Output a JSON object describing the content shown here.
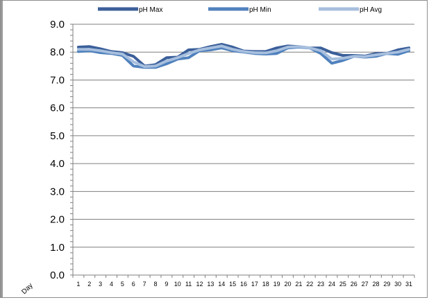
{
  "chart_data": {
    "type": "line",
    "xlabel": "Day",
    "ylabel": "",
    "ylim": [
      0,
      9
    ],
    "yticks": [
      "0.0",
      "1.0",
      "2.0",
      "3.0",
      "4.0",
      "5.0",
      "6.0",
      "7.0",
      "8.0",
      "9.0"
    ],
    "x": [
      1,
      2,
      3,
      4,
      5,
      6,
      7,
      8,
      9,
      10,
      11,
      12,
      13,
      14,
      15,
      16,
      17,
      18,
      19,
      20,
      21,
      22,
      23,
      24,
      25,
      26,
      27,
      28,
      29,
      30,
      31
    ],
    "grid": true,
    "legend_position": "top",
    "series": [
      {
        "name": "pH Max",
        "color": "#3b5f9a",
        "values": [
          8.18,
          8.2,
          8.12,
          8.02,
          7.98,
          7.85,
          7.5,
          7.55,
          7.8,
          7.82,
          8.08,
          8.1,
          8.2,
          8.28,
          8.18,
          8.04,
          8.02,
          8.02,
          8.15,
          8.22,
          8.2,
          8.15,
          8.15,
          7.98,
          7.88,
          7.88,
          7.86,
          7.95,
          7.95,
          8.08,
          8.15
        ]
      },
      {
        "name": "pH Min",
        "color": "#4f81bd",
        "values": [
          8.02,
          8.05,
          7.98,
          7.95,
          7.88,
          7.5,
          7.45,
          7.45,
          7.58,
          7.75,
          7.8,
          8.05,
          8.08,
          8.15,
          8.05,
          8.0,
          7.95,
          7.93,
          7.95,
          8.15,
          8.18,
          8.15,
          7.95,
          7.6,
          7.7,
          7.85,
          7.82,
          7.85,
          7.95,
          7.92,
          8.05
        ]
      },
      {
        "name": "pH Avg",
        "color": "#a7bfde",
        "values": [
          8.1,
          8.1,
          8.05,
          7.98,
          7.93,
          7.65,
          7.48,
          7.5,
          7.68,
          7.8,
          7.95,
          8.08,
          8.15,
          8.22,
          8.1,
          8.02,
          7.98,
          7.97,
          8.05,
          8.18,
          8.2,
          8.15,
          8.05,
          7.75,
          7.78,
          7.85,
          7.84,
          7.9,
          7.95,
          8.0,
          8.1
        ]
      }
    ]
  }
}
